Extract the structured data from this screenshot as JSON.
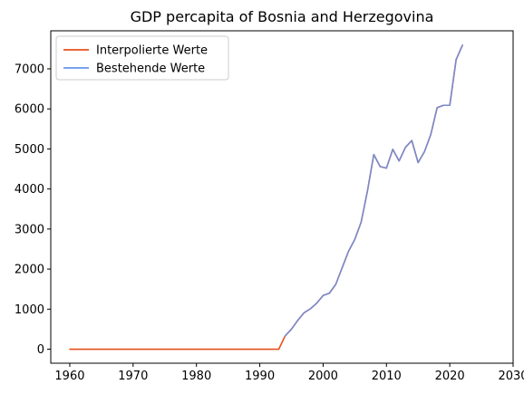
{
  "chart_data": {
    "type": "line",
    "title": "GDP percapita of Bosnia and Herzegovina",
    "xlabel": "",
    "ylabel": "",
    "xlim": [
      1957,
      2030
    ],
    "ylim": [
      -350,
      7950
    ],
    "xticks": [
      1960,
      1970,
      1980,
      1990,
      2000,
      2010,
      2020,
      2030
    ],
    "yticks": [
      0,
      1000,
      2000,
      3000,
      4000,
      5000,
      6000,
      7000
    ],
    "grid": false,
    "legend_position": "top-left",
    "series": [
      {
        "name": "Interpolierte Werte",
        "color": "#e8501c",
        "x": [
          1960,
          1961,
          1962,
          1963,
          1964,
          1965,
          1966,
          1967,
          1968,
          1969,
          1970,
          1971,
          1972,
          1973,
          1974,
          1975,
          1976,
          1977,
          1978,
          1979,
          1980,
          1981,
          1982,
          1983,
          1984,
          1985,
          1986,
          1987,
          1988,
          1989,
          1990,
          1991,
          1992,
          1993,
          1994,
          1995,
          1996,
          1997,
          1998,
          1999,
          2000,
          2001,
          2002,
          2003,
          2004,
          2005,
          2006,
          2007,
          2008,
          2009,
          2010,
          2011,
          2012,
          2013,
          2014,
          2015,
          2016,
          2017,
          2018,
          2019,
          2020,
          2021,
          2022
        ],
        "y": [
          0,
          0,
          0,
          0,
          0,
          0,
          0,
          0,
          0,
          0,
          0,
          0,
          0,
          0,
          0,
          0,
          0,
          0,
          0,
          0,
          0,
          0,
          0,
          0,
          0,
          0,
          0,
          0,
          0,
          0,
          0,
          0,
          0,
          0,
          330,
          500,
          720,
          910,
          1010,
          1150,
          1340,
          1400,
          1620,
          2030,
          2440,
          2740,
          3170,
          3950,
          4860,
          4560,
          4520,
          4990,
          4700,
          5040,
          5210,
          4660,
          4930,
          5360,
          6030,
          6090,
          6090,
          7230,
          7590
        ]
      },
      {
        "name": "Bestehende Werte",
        "color": "#6495ed",
        "x": [
          1994,
          1995,
          1996,
          1997,
          1998,
          1999,
          2000,
          2001,
          2002,
          2003,
          2004,
          2005,
          2006,
          2007,
          2008,
          2009,
          2010,
          2011,
          2012,
          2013,
          2014,
          2015,
          2016,
          2017,
          2018,
          2019,
          2020,
          2021,
          2022
        ],
        "y": [
          330,
          500,
          720,
          910,
          1010,
          1150,
          1340,
          1400,
          1620,
          2030,
          2440,
          2740,
          3170,
          3950,
          4860,
          4560,
          4520,
          4990,
          4700,
          5040,
          5210,
          4660,
          4930,
          5360,
          6030,
          6090,
          6090,
          7230,
          7590
        ]
      }
    ]
  }
}
